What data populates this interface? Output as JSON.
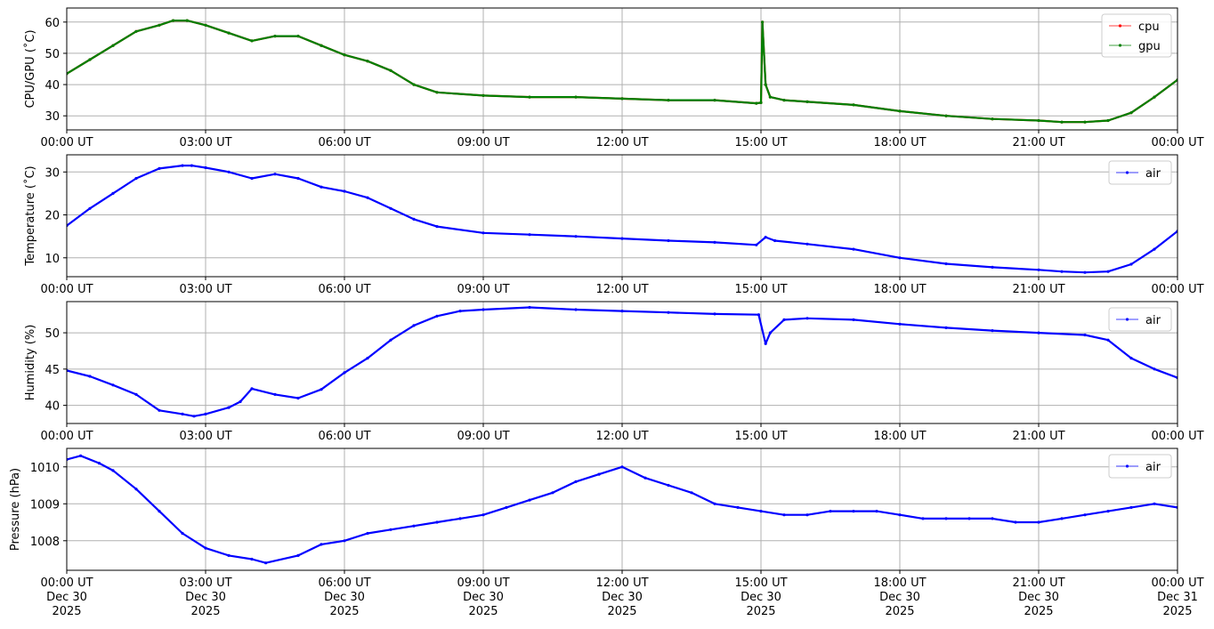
{
  "chart_data": [
    {
      "type": "line",
      "ylabel": "CPU/GPU (˚C)",
      "ylim": [
        25.5,
        64.5
      ],
      "yticks": [
        30,
        40,
        50,
        60
      ],
      "xlim": [
        "2025-12-30 00:00",
        "2025-12-31 00:00"
      ],
      "xtick_labels": [
        "00:00 UT",
        "03:00 UT",
        "06:00 UT",
        "09:00 UT",
        "12:00 UT",
        "15:00 UT",
        "18:00 UT",
        "21:00 UT",
        "00:00 UT"
      ],
      "grid": true,
      "legend_position": "top-right",
      "x_hours": [
        0,
        0.5,
        1,
        1.5,
        2,
        2.3,
        2.6,
        3,
        3.5,
        4,
        4.5,
        5,
        5.5,
        6,
        6.5,
        7,
        7.5,
        8,
        9,
        10,
        11,
        12,
        13,
        14,
        14.9,
        15.0,
        15.03,
        15.1,
        15.2,
        15.5,
        16,
        17,
        18,
        19,
        20,
        21,
        21.5,
        22,
        22.5,
        23,
        23.5,
        24
      ],
      "series": [
        {
          "name": "cpu",
          "color": "#ff0000",
          "values": [
            43.5,
            48,
            52.5,
            57,
            59,
            60.5,
            60.5,
            59,
            56.5,
            54,
            55.5,
            55.5,
            52.5,
            49.5,
            47.5,
            44.5,
            40,
            37.5,
            36.5,
            36,
            36,
            35.5,
            35,
            35,
            34,
            34.2,
            60,
            40,
            36,
            35,
            34.5,
            33.5,
            31.5,
            30,
            29,
            28.5,
            28,
            28,
            28.5,
            31,
            36,
            41.5
          ]
        },
        {
          "name": "gpu",
          "color": "#008000",
          "values": [
            43.5,
            48,
            52.5,
            57,
            59,
            60.5,
            60.5,
            59,
            56.5,
            54,
            55.5,
            55.5,
            52.5,
            49.5,
            47.5,
            44.5,
            40,
            37.5,
            36.5,
            36,
            36,
            35.5,
            35,
            35,
            34,
            34.2,
            60,
            40,
            36,
            35,
            34.5,
            33.5,
            31.5,
            30,
            29,
            28.5,
            28,
            28,
            28.5,
            31,
            36,
            41.5
          ]
        }
      ]
    },
    {
      "type": "line",
      "ylabel": "Temperature (˚C)",
      "ylim": [
        5.6,
        34
      ],
      "yticks": [
        10,
        20,
        30
      ],
      "xlim": [
        "2025-12-30 00:00",
        "2025-12-31 00:00"
      ],
      "xtick_labels": [
        "00:00 UT",
        "03:00 UT",
        "06:00 UT",
        "09:00 UT",
        "12:00 UT",
        "15:00 UT",
        "18:00 UT",
        "21:00 UT",
        "00:00 UT"
      ],
      "grid": true,
      "legend_position": "top-right",
      "x_hours": [
        0,
        0.5,
        1,
        1.5,
        2,
        2.5,
        2.7,
        3,
        3.5,
        4,
        4.5,
        5,
        5.5,
        6,
        6.5,
        7,
        7.5,
        8,
        9,
        10,
        11,
        12,
        13,
        14,
        14.9,
        15.1,
        15.3,
        16,
        17,
        18,
        19,
        20,
        21,
        21.5,
        22,
        22.5,
        23,
        23.5,
        24
      ],
      "series": [
        {
          "name": "air",
          "color": "#0000ff",
          "values": [
            17.5,
            21.5,
            25,
            28.5,
            30.8,
            31.5,
            31.5,
            31,
            30,
            28.5,
            29.5,
            28.5,
            26.5,
            25.5,
            24,
            21.5,
            19,
            17.3,
            15.8,
            15.4,
            15,
            14.5,
            14,
            13.6,
            13,
            14.8,
            14,
            13.2,
            12,
            10,
            8.6,
            7.8,
            7.2,
            6.8,
            6.6,
            6.8,
            8.5,
            12,
            16.2
          ]
        }
      ]
    },
    {
      "type": "line",
      "ylabel": "Humidity (%)",
      "ylim": [
        37.5,
        54.3
      ],
      "yticks": [
        40,
        45,
        50
      ],
      "xlim": [
        "2025-12-30 00:00",
        "2025-12-31 00:00"
      ],
      "xtick_labels": [
        "00:00 UT",
        "03:00 UT",
        "06:00 UT",
        "09:00 UT",
        "12:00 UT",
        "15:00 UT",
        "18:00 UT",
        "21:00 UT",
        "00:00 UT"
      ],
      "grid": true,
      "legend_position": "top-right",
      "x_hours": [
        0,
        0.5,
        1,
        1.5,
        2,
        2.5,
        2.75,
        3,
        3.5,
        3.75,
        4,
        4.5,
        5,
        5.5,
        6,
        6.5,
        7,
        7.5,
        8,
        8.5,
        9,
        10,
        11,
        12,
        13,
        14,
        14.95,
        15.1,
        15.2,
        15.5,
        16,
        17,
        18,
        19,
        20,
        21,
        22,
        22.5,
        23,
        23.5,
        24
      ],
      "series": [
        {
          "name": "air",
          "color": "#0000ff",
          "values": [
            44.8,
            44,
            42.8,
            41.5,
            39.3,
            38.8,
            38.5,
            38.8,
            39.7,
            40.5,
            42.3,
            41.5,
            41,
            42.2,
            44.5,
            46.5,
            49,
            51,
            52.3,
            53,
            53.2,
            53.5,
            53.2,
            53,
            52.8,
            52.6,
            52.5,
            48.5,
            50,
            51.8,
            52,
            51.8,
            51.2,
            50.7,
            50.3,
            50,
            49.7,
            49,
            46.5,
            45,
            43.8
          ]
        }
      ]
    },
    {
      "type": "line",
      "ylabel": "Pressure (hPa)",
      "ylim": [
        1007.2,
        1010.5
      ],
      "yticks": [
        1008,
        1009,
        1010
      ],
      "xlim": [
        "2025-12-30 00:00",
        "2025-12-31 00:00"
      ],
      "xtick_labels": [
        "00:00 UT\nDec 30\n2025",
        "03:00 UT\nDec 30\n2025",
        "06:00 UT\nDec 30\n2025",
        "09:00 UT\nDec 30\n2025",
        "12:00 UT\nDec 30\n2025",
        "15:00 UT\nDec 30\n2025",
        "18:00 UT\nDec 30\n2025",
        "21:00 UT\nDec 30\n2025",
        "00:00 UT\nDec 31\n2025"
      ],
      "grid": true,
      "legend_position": "top-right",
      "x_hours": [
        0,
        0.3,
        0.7,
        1,
        1.5,
        2,
        2.5,
        3,
        3.5,
        4,
        4.3,
        5,
        5.5,
        6,
        6.5,
        7,
        7.5,
        8,
        8.5,
        9,
        9.5,
        10,
        10.5,
        11,
        11.5,
        12,
        12.5,
        13,
        13.5,
        14,
        14.5,
        15,
        15.5,
        16,
        16.5,
        17,
        17.5,
        18,
        18.5,
        19,
        19.5,
        20,
        20.5,
        21,
        21.5,
        22,
        22.5,
        23,
        23.5,
        24
      ],
      "series": [
        {
          "name": "air",
          "color": "#0000ff",
          "values": [
            1010.2,
            1010.3,
            1010.1,
            1009.9,
            1009.4,
            1008.8,
            1008.2,
            1007.8,
            1007.6,
            1007.5,
            1007.4,
            1007.6,
            1007.9,
            1008.0,
            1008.2,
            1008.3,
            1008.4,
            1008.5,
            1008.6,
            1008.7,
            1008.9,
            1009.1,
            1009.3,
            1009.6,
            1009.8,
            1010.0,
            1009.7,
            1009.5,
            1009.3,
            1009.0,
            1008.9,
            1008.8,
            1008.7,
            1008.7,
            1008.8,
            1008.8,
            1008.8,
            1008.7,
            1008.6,
            1008.6,
            1008.6,
            1008.6,
            1008.5,
            1008.5,
            1008.6,
            1008.7,
            1008.8,
            1008.9,
            1009.0,
            1008.9
          ]
        }
      ]
    }
  ]
}
